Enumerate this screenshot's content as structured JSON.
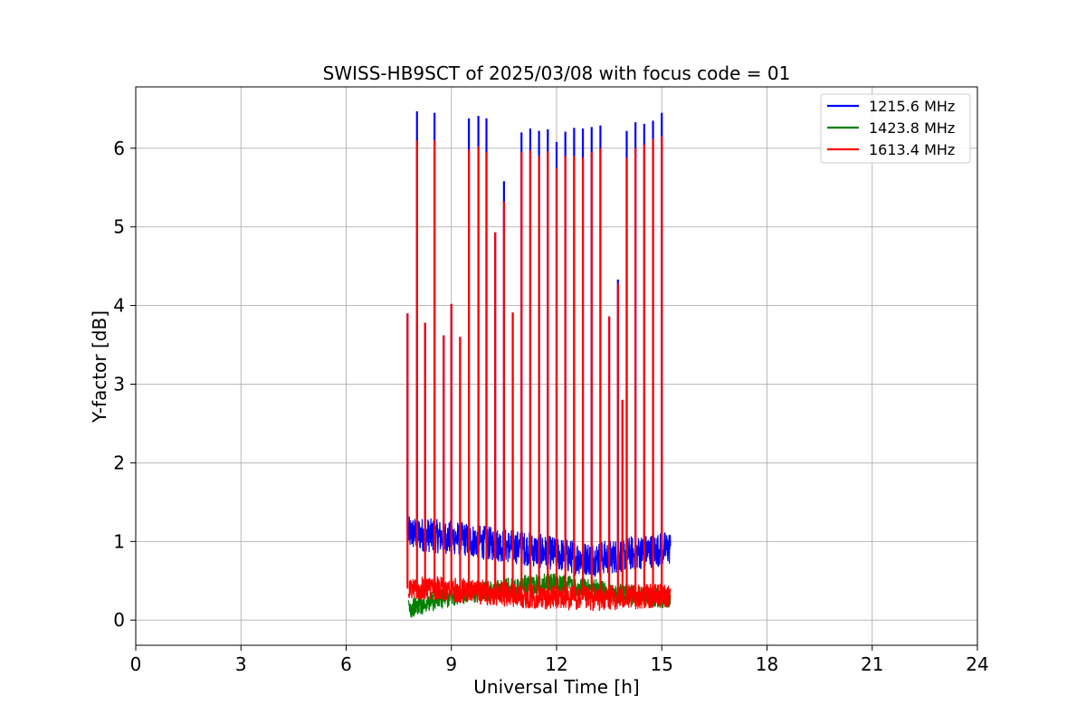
{
  "chart_data": {
    "type": "line",
    "title": "SWISS-HB9SCT of 2025/03/08 with focus code = 01",
    "xlabel": "Universal Time [h]",
    "ylabel": "Y-factor [dB]",
    "xlim": [
      0,
      24
    ],
    "ylim": [
      -0.32,
      6.78
    ],
    "xticks": [
      0,
      3,
      6,
      9,
      12,
      15,
      18,
      21,
      24
    ],
    "yticks": [
      0,
      1,
      2,
      3,
      4,
      5,
      6
    ],
    "grid": true,
    "legend_position": "top-right",
    "series": [
      {
        "name": "1215.6 MHz",
        "color": "#0000ff",
        "baseline": {
          "x": [
            7.78,
            8.0,
            8.5,
            9.0,
            9.5,
            10.0,
            10.5,
            11.0,
            11.5,
            12.0,
            12.5,
            13.0,
            13.5,
            14.0,
            14.5,
            15.0,
            15.25
          ],
          "y": [
            1.1,
            1.1,
            1.07,
            1.05,
            1.02,
            0.98,
            0.95,
            0.92,
            0.88,
            0.84,
            0.8,
            0.78,
            0.8,
            0.84,
            0.87,
            0.9,
            0.92
          ],
          "spread": 0.22
        },
        "peaks": {
          "x": [
            7.75,
            8.02,
            8.25,
            8.52,
            8.78,
            9.0,
            9.25,
            9.5,
            9.77,
            10.0,
            10.25,
            10.5,
            10.75,
            11.0,
            11.25,
            11.5,
            11.75,
            12.0,
            12.25,
            12.5,
            12.75,
            13.0,
            13.25,
            13.5,
            13.75,
            13.88,
            14.0,
            14.25,
            14.5,
            14.75,
            15.0
          ],
          "y": [
            3.9,
            6.47,
            3.78,
            6.45,
            3.62,
            4.02,
            3.6,
            6.38,
            6.41,
            6.38,
            4.93,
            5.58,
            3.91,
            6.2,
            6.25,
            6.22,
            6.24,
            6.08,
            6.21,
            6.26,
            6.25,
            6.27,
            6.29,
            3.86,
            4.33,
            2.8,
            6.22,
            6.33,
            6.31,
            6.35,
            6.45
          ]
        }
      },
      {
        "name": "1423.8 MHz",
        "color": "#008000",
        "baseline": {
          "x": [
            7.78,
            8.0,
            8.5,
            9.0,
            9.5,
            10.0,
            10.5,
            11.0,
            11.5,
            12.0,
            12.5,
            13.0,
            13.5,
            14.0,
            14.5,
            15.0,
            15.25
          ],
          "y": [
            0.14,
            0.18,
            0.24,
            0.3,
            0.34,
            0.37,
            0.4,
            0.44,
            0.47,
            0.46,
            0.44,
            0.4,
            0.36,
            0.32,
            0.3,
            0.28,
            0.27
          ],
          "spread": 0.13
        }
      },
      {
        "name": "1613.4 MHz",
        "color": "#ff0000",
        "baseline": {
          "x": [
            7.78,
            8.0,
            8.5,
            9.0,
            9.5,
            10.0,
            10.5,
            11.0,
            11.5,
            12.0,
            12.5,
            13.0,
            13.5,
            14.0,
            14.5,
            15.0,
            15.25
          ],
          "y": [
            0.4,
            0.41,
            0.4,
            0.38,
            0.37,
            0.35,
            0.33,
            0.31,
            0.3,
            0.29,
            0.28,
            0.27,
            0.28,
            0.29,
            0.3,
            0.31,
            0.32
          ],
          "spread": 0.16
        },
        "peaks": {
          "x": [
            7.75,
            8.02,
            8.25,
            8.52,
            8.78,
            9.0,
            9.25,
            9.5,
            9.77,
            10.0,
            10.25,
            10.5,
            10.75,
            11.0,
            11.25,
            11.5,
            11.75,
            12.0,
            12.25,
            12.5,
            12.75,
            13.0,
            13.25,
            13.5,
            13.75,
            13.88,
            14.0,
            14.25,
            14.5,
            14.75,
            15.0
          ],
          "y": [
            3.9,
            6.1,
            3.78,
            6.1,
            3.62,
            4.02,
            3.6,
            5.98,
            6.02,
            5.95,
            4.93,
            5.32,
            3.91,
            5.95,
            5.97,
            5.9,
            5.96,
            5.75,
            5.9,
            5.9,
            5.88,
            5.95,
            6.0,
            3.86,
            4.28,
            2.8,
            5.88,
            6.0,
            6.05,
            6.12,
            6.15
          ]
        }
      }
    ]
  }
}
